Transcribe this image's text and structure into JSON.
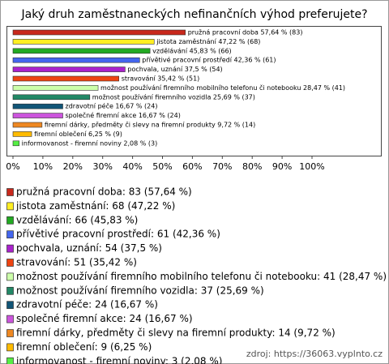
{
  "chart_data": {
    "type": "bar",
    "orientation": "horizontal",
    "title": "Jaký druh zaměstnaneckých nefinančních výhod preferujete?",
    "categories": [
      "pružná pracovní doba",
      "jistota zaměstnání",
      "vzdělávání",
      "přívětivé pracovní prostředí",
      "pochvala, uznání",
      "stravování",
      "možnost používání firemního mobilního telefonu či notebooku",
      "možnost používání firemního vozidla",
      "zdravotní péče",
      "společné firemní akce",
      "firemní dárky, předměty či slevy na firemní produkty",
      "firemní oblečení",
      "informovanost - firemní noviny"
    ],
    "values": [
      57.64,
      47.22,
      45.83,
      42.36,
      37.5,
      35.42,
      28.47,
      25.69,
      16.67,
      16.67,
      9.72,
      6.25,
      2.08
    ],
    "value_labels": [
      "pružná pracovní doba 57,64 % (83)",
      "jistota zaměstnání 47,22 % (68)",
      "vzdělávání 45,83 % (66)",
      "přívětivé pracovní prostředí 42,36 % (61)",
      "pochvala, uznání 37,5 % (54)",
      "stravování 35,42 % (51)",
      "možnost používání firemního mobilního telefonu či notebooku 28,47 % (41)",
      "možnost používání firemního vozidla 25,69 % (37)",
      "zdravotní péče 16,67 % (24)",
      "společné firemní akce 16,67 % (24)",
      "firemní dárky, předměty či slevy na firemní produkty 9,72 % (14)",
      "firemní oblečení 6,25 % (9)",
      "informovanost - firemní noviny 2,08 % (3)"
    ],
    "legend_labels": [
      "pružná pracovní doba: 83 (57,64 %)",
      "jistota zaměstnání: 68 (47,22 %)",
      "vzdělávání: 66 (45,83 %)",
      "přívětivé pracovní prostředí: 61 (42,36 %)",
      "pochvala, uznání: 54 (37,5 %)",
      "stravování: 51 (35,42 %)",
      "možnost používání firemního mobilního telefonu či notebooku: 41 (28,47 %)",
      "možnost používání firemního vozidla: 37 (25,69 %)",
      "zdravotní péče: 24 (16,67 %)",
      "společné firemní akce: 24 (16,67 %)",
      "firemní dárky, předměty či slevy na firemní produkty: 14 (9,72 %)",
      "firemní oblečení: 9 (6,25 %)",
      "informovanost - firemní noviny: 3 (2,08 %)"
    ],
    "colors": [
      "#c8281c",
      "#ffee22",
      "#22aa22",
      "#4466ee",
      "#aa22cc",
      "#ee4411",
      "#ccffaa",
      "#228866",
      "#115577",
      "#cc55dd",
      "#ee8822",
      "#ffbb00",
      "#55ee44"
    ],
    "xlim": [
      0,
      100
    ],
    "xticks": [
      {
        "value": 0,
        "label": "0%"
      },
      {
        "value": 10,
        "label": "10%"
      },
      {
        "value": 20,
        "label": "20%"
      },
      {
        "value": 30,
        "label": "30%"
      },
      {
        "value": 40,
        "label": "40%"
      },
      {
        "value": 50,
        "label": "50%"
      },
      {
        "value": 60,
        "label": "60%"
      },
      {
        "value": 70,
        "label": "70%"
      },
      {
        "value": 80,
        "label": "80%"
      },
      {
        "value": 90,
        "label": "90%"
      },
      {
        "value": 100,
        "label": "100%"
      }
    ],
    "source": "zdroj: https://36063.vyplnto.cz"
  }
}
